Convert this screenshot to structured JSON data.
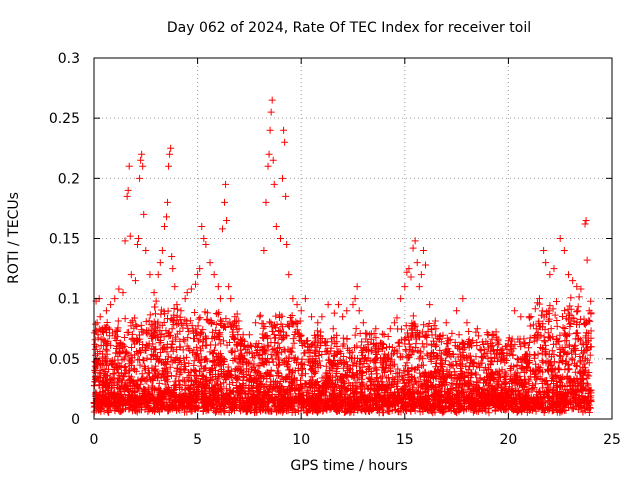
{
  "chart_data": {
    "type": "scatter",
    "title": "Day 062 of 2024, Rate Of TEC Index for receiver toil",
    "xlabel": "GPS time / hours",
    "ylabel": "ROTI / TECUs",
    "xlim": [
      0,
      25
    ],
    "ylim": [
      0,
      0.3
    ],
    "xticks": [
      0,
      5,
      10,
      15,
      20,
      25
    ],
    "yticks": [
      0,
      0.05,
      0.1,
      0.15,
      0.2,
      0.25,
      0.3
    ],
    "xtick_labels": [
      "0",
      "5",
      "10",
      "15",
      "20",
      "25"
    ],
    "ytick_labels": [
      "0",
      "0.05",
      "0.1",
      "0.15",
      "0.2",
      "0.25",
      "0.3"
    ],
    "grid": true,
    "marker": "+",
    "colors": {
      "points": "#ff0000",
      "grid": "#a0a0a0",
      "axes": "#000000"
    },
    "series": [
      {
        "name": "ROTI",
        "points": [
          [
            0.05,
            0.062
          ],
          [
            0.1,
            0.098
          ],
          [
            0.15,
            0.08
          ],
          [
            0.2,
            0.07
          ],
          [
            0.25,
            0.1
          ],
          [
            0.3,
            0.085
          ],
          [
            0.4,
            0.075
          ],
          [
            0.5,
            0.065
          ],
          [
            0.6,
            0.09
          ],
          [
            0.8,
            0.095
          ],
          [
            1.0,
            0.1
          ],
          [
            1.2,
            0.108
          ],
          [
            1.4,
            0.105
          ],
          [
            1.5,
            0.148
          ],
          [
            1.6,
            0.185
          ],
          [
            1.65,
            0.19
          ],
          [
            1.7,
            0.21
          ],
          [
            1.75,
            0.152
          ],
          [
            1.8,
            0.12
          ],
          [
            2.0,
            0.115
          ],
          [
            2.1,
            0.145
          ],
          [
            2.15,
            0.15
          ],
          [
            2.2,
            0.2
          ],
          [
            2.25,
            0.215
          ],
          [
            2.3,
            0.22
          ],
          [
            2.35,
            0.21
          ],
          [
            2.4,
            0.17
          ],
          [
            2.5,
            0.14
          ],
          [
            2.7,
            0.12
          ],
          [
            2.9,
            0.105
          ],
          [
            3.0,
            0.098
          ],
          [
            3.1,
            0.12
          ],
          [
            3.2,
            0.13
          ],
          [
            3.3,
            0.14
          ],
          [
            3.4,
            0.16
          ],
          [
            3.5,
            0.168
          ],
          [
            3.55,
            0.18
          ],
          [
            3.6,
            0.21
          ],
          [
            3.65,
            0.22
          ],
          [
            3.7,
            0.225
          ],
          [
            3.75,
            0.135
          ],
          [
            3.8,
            0.125
          ],
          [
            3.9,
            0.11
          ],
          [
            4.0,
            0.095
          ],
          [
            4.2,
            0.09
          ],
          [
            4.4,
            0.1
          ],
          [
            4.5,
            0.105
          ],
          [
            4.7,
            0.108
          ],
          [
            4.9,
            0.112
          ],
          [
            5.0,
            0.12
          ],
          [
            5.1,
            0.125
          ],
          [
            5.2,
            0.16
          ],
          [
            5.3,
            0.15
          ],
          [
            5.4,
            0.145
          ],
          [
            5.6,
            0.13
          ],
          [
            5.8,
            0.12
          ],
          [
            6.0,
            0.11
          ],
          [
            6.1,
            0.1
          ],
          [
            6.2,
            0.158
          ],
          [
            6.3,
            0.18
          ],
          [
            6.35,
            0.195
          ],
          [
            6.4,
            0.165
          ],
          [
            6.5,
            0.11
          ],
          [
            6.6,
            0.1
          ],
          [
            6.8,
            0.085
          ],
          [
            7.0,
            0.075
          ],
          [
            7.2,
            0.07
          ],
          [
            7.5,
            0.07
          ],
          [
            7.8,
            0.08
          ],
          [
            8.0,
            0.085
          ],
          [
            8.2,
            0.14
          ],
          [
            8.3,
            0.18
          ],
          [
            8.4,
            0.21
          ],
          [
            8.45,
            0.22
          ],
          [
            8.5,
            0.24
          ],
          [
            8.55,
            0.255
          ],
          [
            8.6,
            0.265
          ],
          [
            8.65,
            0.215
          ],
          [
            8.7,
            0.195
          ],
          [
            8.8,
            0.16
          ],
          [
            9.0,
            0.15
          ],
          [
            9.1,
            0.2
          ],
          [
            9.15,
            0.24
          ],
          [
            9.2,
            0.23
          ],
          [
            9.25,
            0.185
          ],
          [
            9.3,
            0.145
          ],
          [
            9.4,
            0.12
          ],
          [
            9.6,
            0.1
          ],
          [
            9.8,
            0.095
          ],
          [
            10.0,
            0.09
          ],
          [
            10.2,
            0.1
          ],
          [
            10.5,
            0.085
          ],
          [
            10.8,
            0.08
          ],
          [
            11.0,
            0.085
          ],
          [
            11.3,
            0.095
          ],
          [
            11.6,
            0.088
          ],
          [
            11.8,
            0.095
          ],
          [
            12.0,
            0.085
          ],
          [
            12.2,
            0.09
          ],
          [
            12.5,
            0.095
          ],
          [
            12.6,
            0.1
          ],
          [
            12.7,
            0.11
          ],
          [
            12.8,
            0.09
          ],
          [
            13.0,
            0.08
          ],
          [
            13.3,
            0.07
          ],
          [
            13.6,
            0.075
          ],
          [
            14.0,
            0.07
          ],
          [
            14.3,
            0.075
          ],
          [
            14.5,
            0.08
          ],
          [
            14.8,
            0.1
          ],
          [
            15.0,
            0.11
          ],
          [
            15.1,
            0.122
          ],
          [
            15.2,
            0.125
          ],
          [
            15.3,
            0.118
          ],
          [
            15.4,
            0.142
          ],
          [
            15.5,
            0.148
          ],
          [
            15.6,
            0.13
          ],
          [
            15.7,
            0.11
          ],
          [
            15.8,
            0.12
          ],
          [
            15.9,
            0.14
          ],
          [
            16.0,
            0.128
          ],
          [
            16.2,
            0.095
          ],
          [
            16.5,
            0.075
          ],
          [
            17.0,
            0.08
          ],
          [
            17.5,
            0.09
          ],
          [
            17.8,
            0.1
          ],
          [
            18.0,
            0.08
          ],
          [
            18.5,
            0.075
          ],
          [
            19.0,
            0.07
          ],
          [
            19.5,
            0.065
          ],
          [
            20.0,
            0.065
          ],
          [
            20.3,
            0.09
          ],
          [
            20.6,
            0.085
          ],
          [
            21.0,
            0.085
          ],
          [
            21.5,
            0.1
          ],
          [
            21.7,
            0.14
          ],
          [
            21.8,
            0.13
          ],
          [
            22.0,
            0.12
          ],
          [
            22.2,
            0.125
          ],
          [
            22.5,
            0.15
          ],
          [
            22.7,
            0.14
          ],
          [
            22.9,
            0.12
          ],
          [
            23.1,
            0.115
          ],
          [
            23.3,
            0.11
          ],
          [
            23.5,
            0.108
          ],
          [
            23.7,
            0.162
          ],
          [
            23.75,
            0.165
          ],
          [
            23.8,
            0.132
          ],
          [
            23.9,
            0.09
          ],
          [
            24.0,
            0.06
          ]
        ]
      }
    ]
  }
}
